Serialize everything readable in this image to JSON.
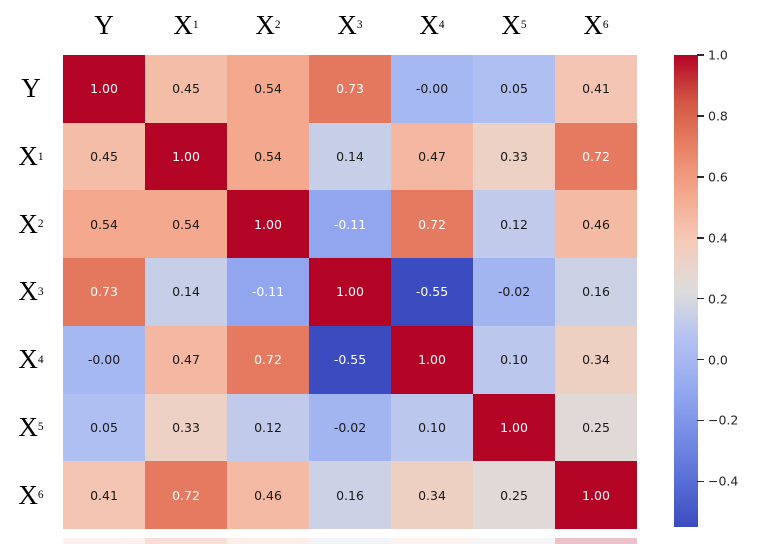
{
  "chart_data": {
    "type": "heatmap",
    "labels": [
      {
        "base": "Y",
        "sub": ""
      },
      {
        "base": "X",
        "sub": "1"
      },
      {
        "base": "X",
        "sub": "2"
      },
      {
        "base": "X",
        "sub": "3"
      },
      {
        "base": "X",
        "sub": "4"
      },
      {
        "base": "X",
        "sub": "5"
      },
      {
        "base": "X",
        "sub": "6"
      }
    ],
    "matrix": [
      [
        1.0,
        0.45,
        0.54,
        0.73,
        -0.0,
        0.05,
        0.41
      ],
      [
        0.45,
        1.0,
        0.54,
        0.14,
        0.47,
        0.33,
        0.72
      ],
      [
        0.54,
        0.54,
        1.0,
        -0.11,
        0.72,
        0.12,
        0.46
      ],
      [
        0.73,
        0.14,
        -0.11,
        1.0,
        -0.55,
        -0.02,
        0.16
      ],
      [
        -0.0,
        0.47,
        0.72,
        -0.55,
        1.0,
        0.1,
        0.34
      ],
      [
        0.05,
        0.33,
        0.12,
        -0.02,
        0.1,
        1.0,
        0.25
      ],
      [
        0.41,
        0.72,
        0.46,
        0.16,
        0.34,
        0.25,
        1.0
      ]
    ],
    "annotations": [
      [
        "1.00",
        "0.45",
        "0.54",
        "0.73",
        "-0.00",
        "0.05",
        "0.41"
      ],
      [
        "0.45",
        "1.00",
        "0.54",
        "0.14",
        "0.47",
        "0.33",
        "0.72"
      ],
      [
        "0.54",
        "0.54",
        "1.00",
        "-0.11",
        "0.72",
        "0.12",
        "0.46"
      ],
      [
        "0.73",
        "0.14",
        "-0.11",
        "1.00",
        "-0.55",
        "-0.02",
        "0.16"
      ],
      [
        "-0.00",
        "0.47",
        "0.72",
        "-0.55",
        "1.00",
        "0.10",
        "0.34"
      ],
      [
        "0.05",
        "0.33",
        "0.12",
        "-0.02",
        "0.10",
        "1.00",
        "0.25"
      ],
      [
        "0.41",
        "0.72",
        "0.46",
        "0.16",
        "0.34",
        "0.25",
        "1.00"
      ]
    ],
    "colormap": "coolwarm",
    "vmin": -0.55,
    "vmax": 1.0,
    "colorbar_position": "right",
    "colorbar_ticks": [
      {
        "label": "1.0",
        "value": 1.0
      },
      {
        "label": "0.8",
        "value": 0.8
      },
      {
        "label": "0.6",
        "value": 0.6
      },
      {
        "label": "0.4",
        "value": 0.4
      },
      {
        "label": "0.2",
        "value": 0.2
      },
      {
        "label": "0.0",
        "value": 0.0
      },
      {
        "label": "−0.2",
        "value": -0.2
      },
      {
        "label": "−0.4",
        "value": -0.4
      }
    ],
    "colors": {
      "background": "#ffffff",
      "annot_dark": "#1a1a1a",
      "annot_light": "#ffffff",
      "axis_label": "#000000",
      "tick_label": "#262626",
      "colormap_stops": [
        "#3B4CC0",
        "#586FD6",
        "#778EE6",
        "#96ABF0",
        "#B4C2F1",
        "#DDDCDC",
        "#F4CCBA",
        "#F4AA90",
        "#E98368",
        "#D25744",
        "#B40426"
      ]
    },
    "grid": false
  }
}
